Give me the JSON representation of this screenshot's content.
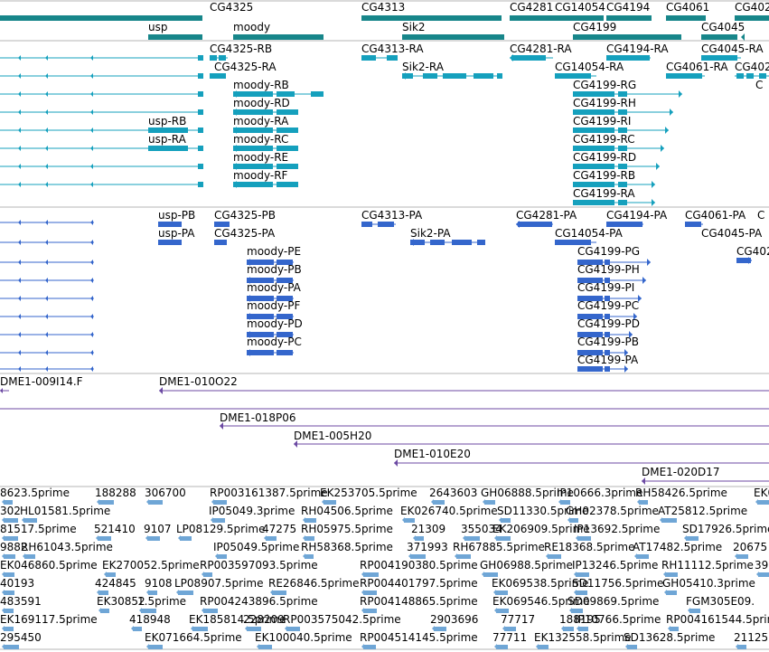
{
  "colors": {
    "gene": "#17868a",
    "transcript": "#15a0bd",
    "protein": "#3466cc",
    "clone": "#6c4aa3",
    "est": "#6fa6d6",
    "divider": "#b5b5b5"
  },
  "tracks": {
    "genes": {
      "labels": [
        "CG4325",
        "CG4313",
        "CG4281",
        "CG14054",
        "CG4194",
        "CG4061",
        "CG402",
        "usp",
        "moody",
        "Sik2",
        "CG4199",
        "CG4045"
      ]
    },
    "transcripts": {
      "labels": [
        "CG4325-RB",
        "CG4313-RA",
        "CG4281-RA",
        "CG4194-RA",
        "CG4045-RA",
        "CG4325-RA",
        "Sik2-RA",
        "CG14054-RA",
        "CG4061-RA",
        "CG402",
        "moody-RB",
        "CG4199-RG",
        "C",
        "moody-RD",
        "CG4199-RH",
        "usp-RB",
        "moody-RA",
        "CG4199-RI",
        "usp-RA",
        "moody-RC",
        "CG4199-RC",
        "moody-RE",
        "CG4199-RD",
        "moody-RF",
        "CG4199-RB",
        "CG4199-RA"
      ]
    },
    "proteins": {
      "labels": [
        "usp-PB",
        "CG4325-PB",
        "CG4313-PA",
        "CG4281-PA",
        "CG4194-PA",
        "CG4061-PA",
        "C",
        "usp-PA",
        "CG4325-PA",
        "Sik2-PA",
        "CG14054-PA",
        "CG4045-PA",
        "CG402",
        "moody-PE",
        "CG4199-PG",
        "moody-PB",
        "CG4199-PH",
        "moody-PA",
        "CG4199-PI",
        "moody-PF",
        "CG4199-PC",
        "moody-PD",
        "CG4199-PD",
        "moody-PC",
        "CG4199-PB",
        "CG4199-PA"
      ]
    },
    "clones": {
      "labels": [
        "DME1-009I14.F",
        "DME1-010O22",
        "DME1-018P06",
        "DME1-005H20",
        "DME1-010E20",
        "DME1-020D17"
      ]
    },
    "ests": {
      "labels": [
        "8623.5prime",
        "188288",
        "306700",
        "RP003161387.5prime",
        "EK253705.5prime",
        "2643603",
        "GH06888.5prime",
        "IP10666.3prime",
        "RH58426.5prime",
        "EK0",
        "302",
        "HL01581.5prime",
        "IP05049.3prime",
        "RH04506.5prime",
        "EK026740.5prime",
        "SD11330.5prime",
        "GH02378.5prime",
        "AT25812.5prime",
        "81517.5prime",
        "521410",
        "9107",
        "LP08129.5prime",
        "47275",
        "RH05975.5prime",
        "21309",
        "355034",
        "EK206909.5prime",
        "IP13692.5prime",
        "SD17926.5prime",
        "9882",
        "RH61043.5prime",
        "IP05049.5prime",
        "RH58368.5prime",
        "371993",
        "RH67885.5prime",
        "RE18368.5prime",
        "AT17482.5prime",
        "20675",
        "EK046860.5prime",
        "EK270052.5prime",
        "RP003597093.5prime",
        "RP004190380.5prime",
        "GH06988.5prime",
        "IP13246.5prime",
        "RH11112.5prime",
        "393",
        "40193",
        "424845",
        "9108",
        "LP08907.5prime",
        "RE26846.5prime",
        "RP004401797.5prime",
        "EK069538.5prime",
        "SD11756.5prime",
        "GH05410.3prime",
        "483591",
        "EK30852",
        "1.5prime",
        "RP004243896.5prime",
        "RP004148865.5prime",
        "EK069546.5prime",
        "SD09869.5prime",
        "FGM305E09.",
        "EK169117.5prime",
        "418948",
        "EK185814.5prime",
        "228209",
        "RP003575042.5prime",
        "2903696",
        "77717",
        "188195",
        "IP10766.5prime",
        "RP004161544.5prime",
        "295450",
        "EK071664.5prime",
        "EK100040.5prime",
        "RP004514145.5prime",
        "77711",
        "EK132558.5prime",
        "SD13628.5prime",
        "21125"
      ]
    }
  }
}
